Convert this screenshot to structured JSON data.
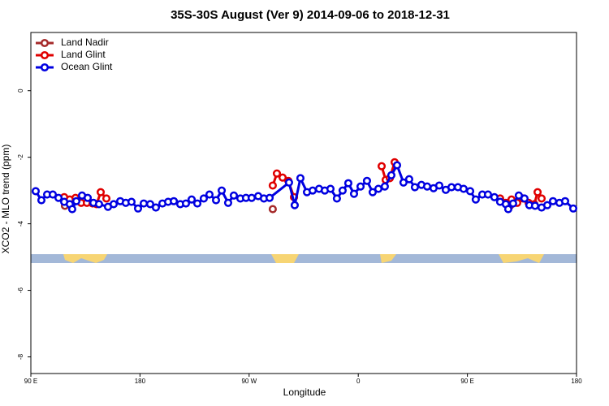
{
  "chart_data": {
    "type": "line",
    "title": "35S-30S August (Ver 9)   2014-09-06 to 2018-12-31",
    "x_label": "Longitude",
    "y_label": "XCO2 - MLO trend (ppm)",
    "xlim": [
      90,
      540
    ],
    "ylim": [
      -8.5,
      1.75
    ],
    "xticks": [
      {
        "value": 90,
        "label": "90 E"
      },
      180,
      {
        "value": 270,
        "label": "90 W"
      },
      {
        "value": 360,
        "label": "0"
      },
      {
        "value": 450,
        "label": "90 E"
      },
      {
        "value": 540,
        "label": "180"
      }
    ],
    "yticks": [
      0,
      -2,
      -4,
      -6,
      -8
    ],
    "legend": "top-left",
    "series": [
      {
        "name": "Land Nadir",
        "color": "#a52a2a",
        "x": [
          118.1,
          null,
          289.5,
          null,
          485.1
        ],
        "values": [
          -3.46,
          null,
          -3.56,
          null,
          -3.46
        ]
      },
      {
        "name": "Land Glint",
        "color": "#e00000",
        "x": [
          117.5,
          122.1,
          126.8,
          131.5,
          136.2,
          140.9,
          144.2,
          147.6,
          152.3,
          null,
          289.5,
          292.9,
          297.6,
          302.3,
          307.0,
          null,
          379.3,
          382.6,
          386.0,
          390.0,
          null,
          477.0,
          481.7,
          486.4,
          491.1,
          495.9,
          500.5,
          505.2,
          507.9,
          511.2
        ],
        "values": [
          -3.2,
          -3.27,
          -3.22,
          -3.37,
          -3.37,
          -3.39,
          -3.41,
          -3.05,
          -3.24,
          null,
          -2.85,
          -2.49,
          -2.61,
          -2.71,
          -3.2,
          null,
          -2.27,
          -2.68,
          -2.63,
          -2.15,
          null,
          -3.24,
          -3.37,
          -3.27,
          -3.37,
          -3.24,
          -3.37,
          -3.41,
          -3.05,
          -3.24
        ]
      },
      {
        "name": "Ocean Glint",
        "color": "#0000e0",
        "x": [
          94.0,
          98.7,
          103.4,
          108.1,
          112.8,
          117.5,
          122.1,
          124.1,
          127.5,
          132.2,
          136.9,
          141.6,
          146.2,
          153.6,
          158.3,
          163.7,
          168.3,
          173.0,
          178.4,
          183.1,
          188.4,
          193.1,
          198.5,
          203.2,
          207.9,
          213.2,
          217.9,
          222.6,
          227.3,
          232.6,
          237.3,
          242.7,
          247.4,
          252.7,
          257.4,
          262.8,
          267.4,
          272.1,
          277.5,
          282.2,
          286.9,
          302.9,
          307.6,
          312.3,
          317.7,
          322.4,
          327.7,
          332.4,
          337.1,
          342.4,
          347.1,
          351.8,
          356.5,
          361.9,
          367.2,
          371.9,
          376.6,
          381.9,
          387.3,
          392.0,
          397.3,
          402.0,
          406.7,
          412.1,
          416.8,
          422.1,
          426.8,
          432.2,
          436.9,
          442.2,
          446.9,
          452.3,
          456.9,
          462.3,
          467.0,
          472.3,
          477.0,
          481.7,
          483.7,
          487.7,
          492.4,
          497.1,
          501.1,
          505.8,
          511.2,
          515.9,
          520.6,
          525.9,
          530.6,
          537.3
        ],
        "values": [
          -3.02,
          -3.29,
          -3.12,
          -3.12,
          -3.22,
          -3.34,
          -3.41,
          -3.56,
          -3.32,
          -3.15,
          -3.22,
          -3.37,
          -3.41,
          -3.49,
          -3.41,
          -3.32,
          -3.37,
          -3.34,
          -3.54,
          -3.39,
          -3.41,
          -3.51,
          -3.39,
          -3.34,
          -3.32,
          -3.41,
          -3.39,
          -3.27,
          -3.39,
          -3.24,
          -3.12,
          -3.29,
          -3.0,
          -3.37,
          -3.15,
          -3.24,
          -3.22,
          -3.22,
          -3.17,
          -3.24,
          -3.22,
          -2.76,
          -3.44,
          -2.63,
          -3.05,
          -3.0,
          -2.95,
          -3.0,
          -2.95,
          -3.24,
          -3.0,
          -2.78,
          -3.1,
          -2.88,
          -2.71,
          -3.05,
          -2.95,
          -2.88,
          -2.54,
          -2.24,
          -2.76,
          -2.66,
          -2.9,
          -2.83,
          -2.88,
          -2.93,
          -2.85,
          -2.98,
          -2.9,
          -2.9,
          -2.95,
          -3.02,
          -3.27,
          -3.12,
          -3.12,
          -3.2,
          -3.34,
          -3.41,
          -3.56,
          -3.39,
          -3.15,
          -3.24,
          -3.44,
          -3.46,
          -3.51,
          -3.44,
          -3.32,
          -3.37,
          -3.32,
          -3.54
        ]
      }
    ]
  }
}
